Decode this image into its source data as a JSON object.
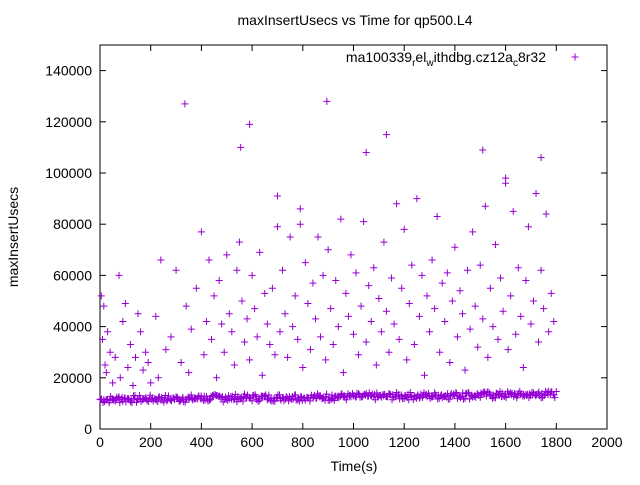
{
  "chart_data": {
    "type": "scatter",
    "title": "maxInsertUsecs vs Time for qp500.L4",
    "xlabel": "Time(s)",
    "ylabel": "maxInsertUsecs",
    "xlim": [
      0,
      2000
    ],
    "ylim": [
      0,
      150000
    ],
    "x_ticks": [
      0,
      200,
      400,
      600,
      800,
      1000,
      1200,
      1400,
      1600,
      1800,
      2000
    ],
    "y_ticks": [
      0,
      20000,
      40000,
      60000,
      80000,
      100000,
      120000,
      140000
    ],
    "grid": false,
    "legend_position": "top-right",
    "colors": {
      "series": "#9400d3"
    },
    "series": [
      {
        "name": "ma100339_rel_withdbg.cz12a_c8r32",
        "name_display": {
          "parts": [
            "ma100339",
            "r",
            "el",
            "w",
            "ithdbg.cz12a",
            "c",
            "8r32"
          ]
        },
        "marker": "plus",
        "x": [
          5,
          10,
          15,
          20,
          25,
          30,
          40,
          50,
          60,
          75,
          80,
          90,
          100,
          110,
          120,
          130,
          140,
          150,
          160,
          170,
          180,
          190,
          200,
          220,
          230,
          240,
          260,
          280,
          300,
          320,
          340,
          350,
          360,
          380,
          400,
          410,
          420,
          430,
          440,
          450,
          460,
          470,
          480,
          490,
          500,
          510,
          520,
          530,
          540,
          550,
          560,
          570,
          580,
          590,
          600,
          610,
          620,
          630,
          640,
          650,
          660,
          670,
          680,
          690,
          700,
          710,
          720,
          730,
          740,
          750,
          760,
          770,
          780,
          790,
          800,
          810,
          820,
          830,
          840,
          850,
          860,
          870,
          880,
          890,
          900,
          910,
          920,
          930,
          940,
          950,
          960,
          970,
          980,
          990,
          1000,
          1010,
          1020,
          1030,
          1040,
          1050,
          1060,
          1070,
          1080,
          1090,
          1100,
          1110,
          1120,
          1130,
          1140,
          1150,
          1160,
          1170,
          1180,
          1190,
          1200,
          1210,
          1220,
          1230,
          1240,
          1250,
          1260,
          1270,
          1280,
          1290,
          1300,
          1310,
          1320,
          1330,
          1340,
          1350,
          1360,
          1370,
          1380,
          1390,
          1400,
          1410,
          1420,
          1430,
          1440,
          1450,
          1460,
          1470,
          1480,
          1490,
          1500,
          1510,
          1520,
          1530,
          1540,
          1550,
          1560,
          1570,
          1580,
          1590,
          1600,
          1610,
          1620,
          1630,
          1640,
          1650,
          1660,
          1670,
          1680,
          1690,
          1700,
          1710,
          1720,
          1730,
          1740,
          1750,
          1760,
          1770,
          1780,
          1790,
          335,
          555,
          590,
          700,
          790,
          895,
          1050,
          1130,
          1510,
          1600,
          1740
        ],
        "y": [
          52000,
          35000,
          48000,
          25000,
          22000,
          38000,
          30000,
          18000,
          28000,
          60000,
          20000,
          42000,
          49000,
          24000,
          33000,
          17000,
          28000,
          45000,
          38000,
          23000,
          30000,
          26000,
          18000,
          44000,
          20000,
          66000,
          31000,
          36000,
          62000,
          26000,
          48000,
          22000,
          39000,
          55000,
          77000,
          29000,
          42000,
          66000,
          35000,
          52000,
          20000,
          58000,
          41000,
          30000,
          68000,
          45000,
          38000,
          25000,
          62000,
          73000,
          50000,
          34000,
          43000,
          27000,
          60000,
          47000,
          36000,
          69000,
          21000,
          53000,
          41000,
          33000,
          55000,
          29000,
          91000,
          38000,
          62000,
          45000,
          28000,
          75000,
          40000,
          52000,
          35000,
          86000,
          24000,
          65000,
          49000,
          31000,
          57000,
          43000,
          75000,
          36000,
          60000,
          27000,
          70000,
          47000,
          33000,
          58000,
          40000,
          82000,
          22000,
          53000,
          44000,
          68000,
          37000,
          61000,
          29000,
          48000,
          81000,
          34000,
          56000,
          42000,
          63000,
          25000,
          51000,
          38000,
          73000,
          46000,
          30000,
          59000,
          41000,
          88000,
          35000,
          55000,
          78000,
          27000,
          49000,
          64000,
          33000,
          90000,
          44000,
          60000,
          21000,
          52000,
          38000,
          66000,
          47000,
          83000,
          30000,
          57000,
          42000,
          61000,
          26000,
          50000,
          71000,
          36000,
          54000,
          45000,
          23000,
          62000,
          39000,
          77000,
          48000,
          32000,
          64000,
          43000,
          87000,
          28000,
          55000,
          40000,
          72000,
          35000,
          59000,
          46000,
          96000,
          31000,
          52000,
          85000,
          37000,
          63000,
          44000,
          24000,
          58000,
          79000,
          41000,
          50000,
          92000,
          34000,
          62000,
          47000,
          84000,
          38000,
          53000,
          42000,
          127000,
          110000,
          119000,
          79000,
          80000,
          128000,
          108000,
          115000,
          109000,
          98000,
          106000
        ],
        "baseline": {
          "x_start": 0,
          "x_end": 1800,
          "y_start": 11500,
          "y_end": 13500,
          "jitter": 1500
        }
      }
    ]
  }
}
